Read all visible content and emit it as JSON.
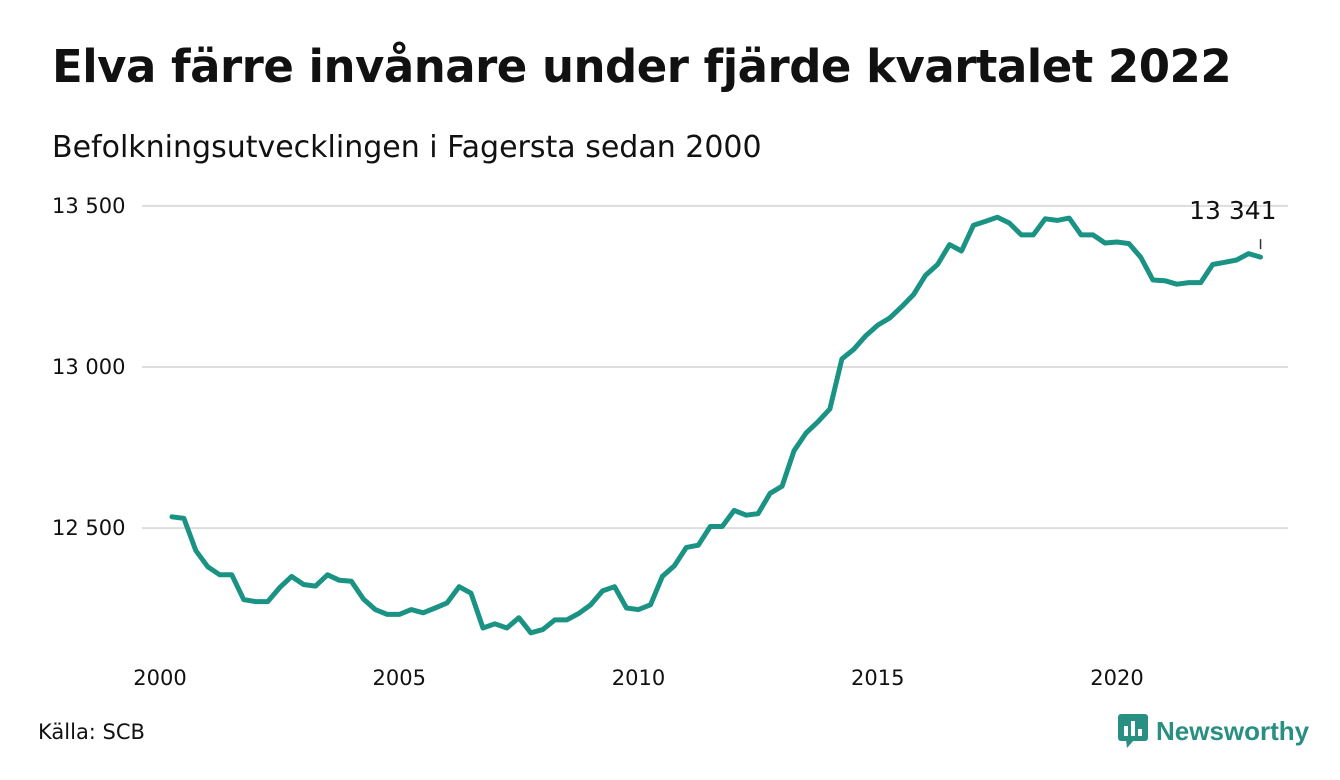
{
  "title": "Elva färre invånare under fjärde kvartalet 2022",
  "subtitle": "Befolkningsutvecklingen i Fagersta sedan 2000",
  "source": "Källa: SCB",
  "brand": "Newsworthy",
  "colors": {
    "line": "#1a9384",
    "grid": "#dddddd",
    "brand": "#2a8f83"
  },
  "chart_data": {
    "type": "line",
    "title": "Elva färre invånare under fjärde kvartalet 2022",
    "subtitle": "Befolkningsutvecklingen i Fagersta sedan 2000",
    "xlabel": "",
    "ylabel": "",
    "x_ticks": [
      2000,
      2005,
      2010,
      2015,
      2020
    ],
    "y_ticks": [
      12500,
      13000,
      13500
    ],
    "y_tick_labels": [
      "12 500",
      "13 000",
      "13 500"
    ],
    "xlim": [
      1999.8,
      2023.25
    ],
    "ylim": [
      12160,
      13540
    ],
    "grid": true,
    "legend": "none",
    "end_label": "13 341",
    "series": [
      {
        "x": [
          2000.25,
          2000.5,
          2000.75,
          2001.0,
          2001.25,
          2001.5,
          2001.75,
          2002.0,
          2002.25,
          2002.5,
          2002.75,
          2003.0,
          2003.25,
          2003.5,
          2003.75,
          2004.0,
          2004.25,
          2004.5,
          2004.75,
          2005.0,
          2005.25,
          2005.5,
          2005.75,
          2006.0,
          2006.25,
          2006.5,
          2006.75,
          2007.0,
          2007.25,
          2007.5,
          2007.75,
          2008.0,
          2008.25,
          2008.5,
          2008.75,
          2009.0,
          2009.25,
          2009.5,
          2009.75,
          2010.0,
          2010.25,
          2010.5,
          2010.75,
          2011.0,
          2011.25,
          2011.5,
          2011.75,
          2012.0,
          2012.25,
          2012.5,
          2012.75,
          2013.0,
          2013.25,
          2013.5,
          2013.75,
          2014.0,
          2014.25,
          2014.5,
          2014.75,
          2015.0,
          2015.25,
          2015.5,
          2015.75,
          2016.0,
          2016.25,
          2016.5,
          2016.75,
          2017.0,
          2017.25,
          2017.5,
          2017.75,
          2018.0,
          2018.25,
          2018.5,
          2018.75,
          2019.0,
          2019.25,
          2019.5,
          2019.75,
          2020.0,
          2020.25,
          2020.5,
          2020.75,
          2021.0,
          2021.25,
          2021.5,
          2021.75,
          2022.0,
          2022.25,
          2022.5,
          2022.75,
          2023.0
        ],
        "values": [
          12535,
          12530,
          12430,
          12380,
          12355,
          12355,
          12278,
          12272,
          12272,
          12315,
          12350,
          12325,
          12320,
          12355,
          12338,
          12335,
          12280,
          12247,
          12232,
          12232,
          12247,
          12237,
          12252,
          12268,
          12318,
          12298,
          12190,
          12203,
          12190,
          12222,
          12175,
          12185,
          12215,
          12215,
          12235,
          12262,
          12305,
          12318,
          12252,
          12247,
          12262,
          12350,
          12383,
          12440,
          12447,
          12505,
          12505,
          12555,
          12540,
          12545,
          12608,
          12630,
          12740,
          12795,
          12830,
          12870,
          13025,
          13055,
          13097,
          13130,
          13152,
          13187,
          13225,
          13285,
          13318,
          13380,
          13360,
          13440,
          13452,
          13465,
          13447,
          13410,
          13410,
          13460,
          13455,
          13462,
          13410,
          13410,
          13385,
          13388,
          13383,
          13340,
          13270,
          13268,
          13257,
          13262,
          13262,
          13318,
          13325,
          13332,
          13352,
          13341
        ]
      }
    ]
  }
}
